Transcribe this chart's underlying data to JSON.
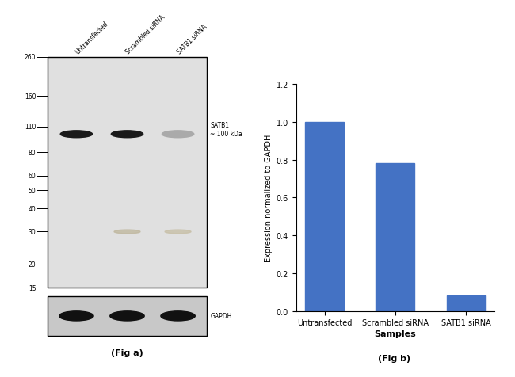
{
  "fig_a": {
    "title": "(Fig a)",
    "lane_labels": [
      "Untransfected",
      "Scrambled siRNA",
      "SATB1 siRNA"
    ],
    "mw_markers": [
      260,
      160,
      110,
      80,
      60,
      50,
      40,
      30,
      20,
      15
    ],
    "satb1_label": "SATB1\n~ 100 kDa",
    "gapdh_label": "GAPDH",
    "main_bg": "#e0e0e0",
    "gapdh_bg": "#c8c8c8"
  },
  "fig_b": {
    "title": "(Fig b)",
    "categories": [
      "Untransfected",
      "Scrambled siRNA",
      "SATB1 siRNA"
    ],
    "values": [
      1.0,
      0.78,
      0.08
    ],
    "bar_color": "#4472c4",
    "ylabel": "Expression normalized to GAPDH",
    "xlabel": "Samples",
    "ylim": [
      0,
      1.2
    ],
    "yticks": [
      0,
      0.2,
      0.4,
      0.6,
      0.8,
      1.0,
      1.2
    ]
  },
  "background_color": "#ffffff"
}
